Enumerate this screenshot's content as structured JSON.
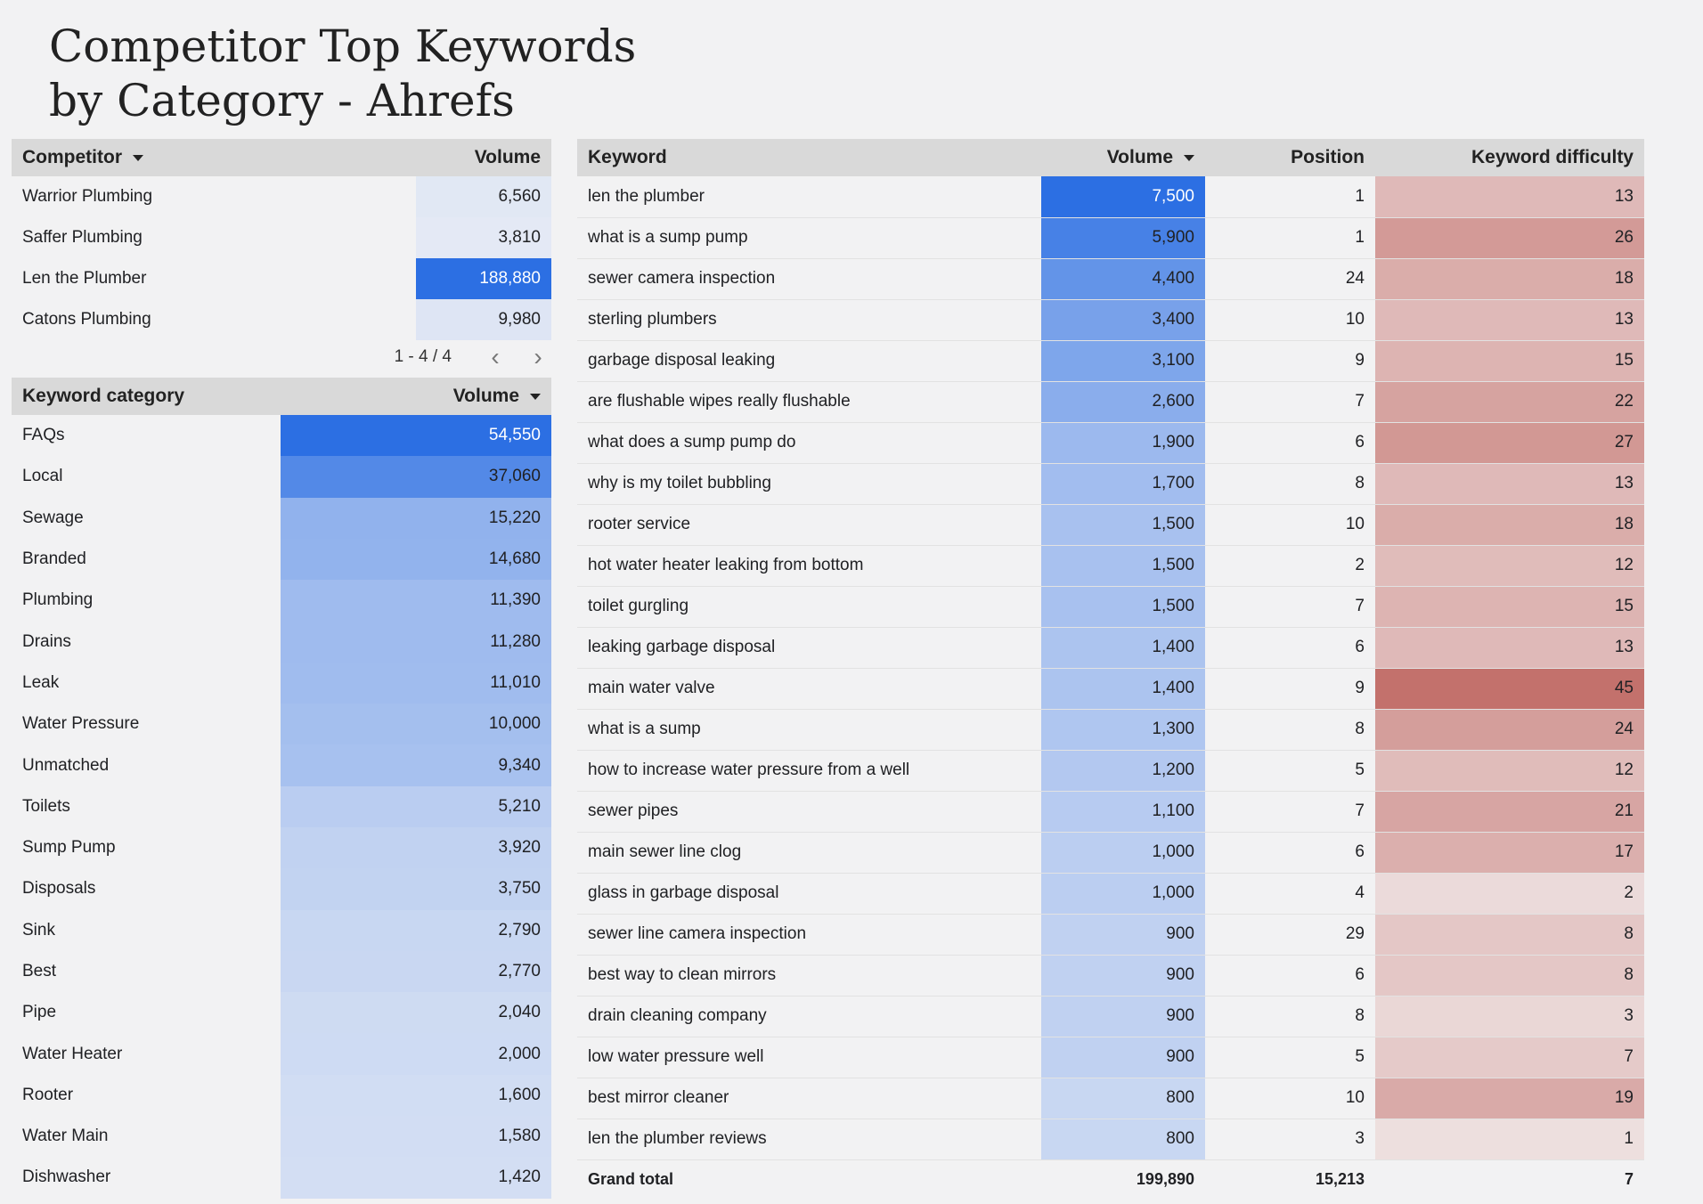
{
  "title": "Competitor Top Keywords by Category - Ahrefs",
  "colors": {
    "accent_blue": "#2c6fe3",
    "pale_blue": "#e8ecf5",
    "heat_red": "#c3716c",
    "pale_red": "#efe4e4",
    "header_gray": "#d9d9d9",
    "background": "#f2f2f3"
  },
  "competitor_table": {
    "headers": {
      "competitor": "Competitor",
      "volume": "Volume"
    },
    "sorted_column": "competitor",
    "rows": [
      {
        "name": "Warrior Plumbing",
        "volume": "6,560",
        "volume_value": 6560
      },
      {
        "name": "Saffer Plumbing",
        "volume": "3,810",
        "volume_value": 3810
      },
      {
        "name": "Len the Plumber",
        "volume": "188,880",
        "volume_value": 188880
      },
      {
        "name": "Catons Plumbing",
        "volume": "9,980",
        "volume_value": 9980
      }
    ],
    "pagination": {
      "text": "1 - 4 / 4",
      "prev_icon": "chevron-left-icon",
      "next_icon": "chevron-right-icon"
    }
  },
  "category_table": {
    "headers": {
      "category": "Keyword category",
      "volume": "Volume"
    },
    "sorted_column": "volume",
    "rows": [
      {
        "name": "FAQs",
        "volume": "54,550",
        "volume_value": 54550
      },
      {
        "name": "Local",
        "volume": "37,060",
        "volume_value": 37060
      },
      {
        "name": "Sewage",
        "volume": "15,220",
        "volume_value": 15220
      },
      {
        "name": "Branded",
        "volume": "14,680",
        "volume_value": 14680
      },
      {
        "name": "Plumbing",
        "volume": "11,390",
        "volume_value": 11390
      },
      {
        "name": "Drains",
        "volume": "11,280",
        "volume_value": 11280
      },
      {
        "name": "Leak",
        "volume": "11,010",
        "volume_value": 11010
      },
      {
        "name": "Water Pressure",
        "volume": "10,000",
        "volume_value": 10000
      },
      {
        "name": "Unmatched",
        "volume": "9,340",
        "volume_value": 9340
      },
      {
        "name": "Toilets",
        "volume": "5,210",
        "volume_value": 5210
      },
      {
        "name": "Sump Pump",
        "volume": "3,920",
        "volume_value": 3920
      },
      {
        "name": "Disposals",
        "volume": "3,750",
        "volume_value": 3750
      },
      {
        "name": "Sink",
        "volume": "2,790",
        "volume_value": 2790
      },
      {
        "name": "Best",
        "volume": "2,770",
        "volume_value": 2770
      },
      {
        "name": "Pipe",
        "volume": "2,040",
        "volume_value": 2040
      },
      {
        "name": "Water Heater",
        "volume": "2,000",
        "volume_value": 2000
      },
      {
        "name": "Rooter",
        "volume": "1,600",
        "volume_value": 1600
      },
      {
        "name": "Water Main",
        "volume": "1,580",
        "volume_value": 1580
      },
      {
        "name": "Dishwasher",
        "volume": "1,420",
        "volume_value": 1420
      }
    ]
  },
  "keyword_table": {
    "headers": {
      "keyword": "Keyword",
      "volume": "Volume",
      "position": "Position",
      "difficulty": "Keyword difficulty"
    },
    "sorted_column": "volume",
    "rows": [
      {
        "keyword": "len the plumber",
        "volume": "7,500",
        "volume_value": 7500,
        "position": "1",
        "difficulty": "13",
        "difficulty_value": 13
      },
      {
        "keyword": "what is a sump pump",
        "volume": "5,900",
        "volume_value": 5900,
        "position": "1",
        "difficulty": "26",
        "difficulty_value": 26
      },
      {
        "keyword": "sewer camera inspection",
        "volume": "4,400",
        "volume_value": 4400,
        "position": "24",
        "difficulty": "18",
        "difficulty_value": 18
      },
      {
        "keyword": "sterling plumbers",
        "volume": "3,400",
        "volume_value": 3400,
        "position": "10",
        "difficulty": "13",
        "difficulty_value": 13
      },
      {
        "keyword": "garbage disposal leaking",
        "volume": "3,100",
        "volume_value": 3100,
        "position": "9",
        "difficulty": "15",
        "difficulty_value": 15
      },
      {
        "keyword": "are flushable wipes really flushable",
        "volume": "2,600",
        "volume_value": 2600,
        "position": "7",
        "difficulty": "22",
        "difficulty_value": 22
      },
      {
        "keyword": "what does a sump pump do",
        "volume": "1,900",
        "volume_value": 1900,
        "position": "6",
        "difficulty": "27",
        "difficulty_value": 27
      },
      {
        "keyword": "why is my toilet bubbling",
        "volume": "1,700",
        "volume_value": 1700,
        "position": "8",
        "difficulty": "13",
        "difficulty_value": 13
      },
      {
        "keyword": "rooter service",
        "volume": "1,500",
        "volume_value": 1500,
        "position": "10",
        "difficulty": "18",
        "difficulty_value": 18
      },
      {
        "keyword": "hot water heater leaking from bottom",
        "volume": "1,500",
        "volume_value": 1500,
        "position": "2",
        "difficulty": "12",
        "difficulty_value": 12
      },
      {
        "keyword": "toilet gurgling",
        "volume": "1,500",
        "volume_value": 1500,
        "position": "7",
        "difficulty": "15",
        "difficulty_value": 15
      },
      {
        "keyword": "leaking garbage disposal",
        "volume": "1,400",
        "volume_value": 1400,
        "position": "6",
        "difficulty": "13",
        "difficulty_value": 13
      },
      {
        "keyword": "main water valve",
        "volume": "1,400",
        "volume_value": 1400,
        "position": "9",
        "difficulty": "45",
        "difficulty_value": 45
      },
      {
        "keyword": "what is a sump",
        "volume": "1,300",
        "volume_value": 1300,
        "position": "8",
        "difficulty": "24",
        "difficulty_value": 24
      },
      {
        "keyword": "how to increase water pressure from a well",
        "volume": "1,200",
        "volume_value": 1200,
        "position": "5",
        "difficulty": "12",
        "difficulty_value": 12
      },
      {
        "keyword": "sewer pipes",
        "volume": "1,100",
        "volume_value": 1100,
        "position": "7",
        "difficulty": "21",
        "difficulty_value": 21
      },
      {
        "keyword": "main sewer line clog",
        "volume": "1,000",
        "volume_value": 1000,
        "position": "6",
        "difficulty": "17",
        "difficulty_value": 17
      },
      {
        "keyword": "glass in garbage disposal",
        "volume": "1,000",
        "volume_value": 1000,
        "position": "4",
        "difficulty": "2",
        "difficulty_value": 2
      },
      {
        "keyword": "sewer line camera inspection",
        "volume": "900",
        "volume_value": 900,
        "position": "29",
        "difficulty": "8",
        "difficulty_value": 8
      },
      {
        "keyword": "best way to clean mirrors",
        "volume": "900",
        "volume_value": 900,
        "position": "6",
        "difficulty": "8",
        "difficulty_value": 8
      },
      {
        "keyword": "drain cleaning company",
        "volume": "900",
        "volume_value": 900,
        "position": "8",
        "difficulty": "3",
        "difficulty_value": 3
      },
      {
        "keyword": "low water pressure well",
        "volume": "900",
        "volume_value": 900,
        "position": "5",
        "difficulty": "7",
        "difficulty_value": 7
      },
      {
        "keyword": "best mirror cleaner",
        "volume": "800",
        "volume_value": 800,
        "position": "10",
        "difficulty": "19",
        "difficulty_value": 19
      },
      {
        "keyword": "len the plumber reviews",
        "volume": "800",
        "volume_value": 800,
        "position": "3",
        "difficulty": "1",
        "difficulty_value": 1
      }
    ],
    "grand_total": {
      "label": "Grand total",
      "volume": "199,890",
      "position": "15,213",
      "difficulty": "7"
    }
  }
}
